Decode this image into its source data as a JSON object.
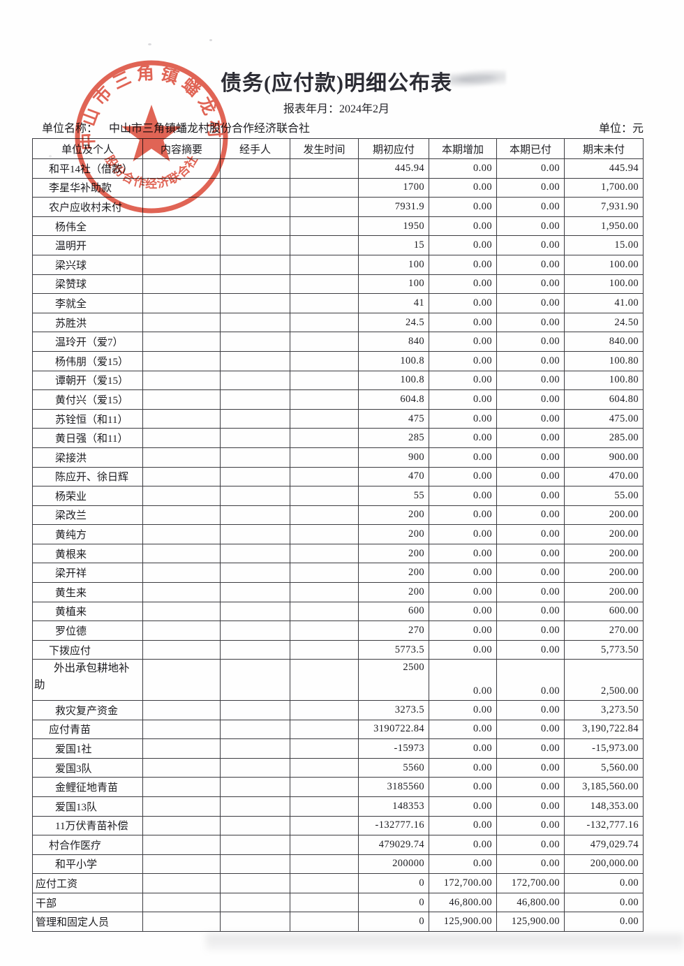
{
  "page": {
    "title": "债务(应付款)明细公布表",
    "report_period_label": "报表年月：2024年2月",
    "unit_name_label": "单位名称：",
    "unit_name": "中山市三角镇蟠龙村股份合作经济联合社",
    "currency_label": "单位：元"
  },
  "seal": {
    "arc_text": "中山市三角镇蟠龙村",
    "bottom_text": "股份合作经济联合社",
    "color": "#dc4634"
  },
  "table": {
    "columns": [
      "单位及个人",
      "内容摘要",
      "经手人",
      "发生时间",
      "期初应付",
      "本期增加",
      "本期已付",
      "期末未付"
    ],
    "rows": [
      {
        "name": "和平14社（借款）",
        "indent": 1,
        "values": [
          "445.94",
          "0.00",
          "0.00",
          "445.94"
        ]
      },
      {
        "name": "李星华补助款",
        "indent": 1,
        "values": [
          "1700",
          "0.00",
          "0.00",
          "1,700.00"
        ]
      },
      {
        "name": "农户应收村未付",
        "indent": 1,
        "values": [
          "7931.9",
          "0.00",
          "0.00",
          "7,931.90"
        ]
      },
      {
        "name": "杨伟全",
        "indent": 2,
        "values": [
          "1950",
          "0.00",
          "0.00",
          "1,950.00"
        ]
      },
      {
        "name": "温明开",
        "indent": 2,
        "values": [
          "15",
          "0.00",
          "0.00",
          "15.00"
        ]
      },
      {
        "name": "梁兴球",
        "indent": 2,
        "values": [
          "100",
          "0.00",
          "0.00",
          "100.00"
        ]
      },
      {
        "name": "梁赞球",
        "indent": 2,
        "values": [
          "100",
          "0.00",
          "0.00",
          "100.00"
        ]
      },
      {
        "name": "李就全",
        "indent": 2,
        "values": [
          "41",
          "0.00",
          "0.00",
          "41.00"
        ]
      },
      {
        "name": "苏胜洪",
        "indent": 2,
        "values": [
          "24.5",
          "0.00",
          "0.00",
          "24.50"
        ]
      },
      {
        "name": "温玲开（爱7）",
        "indent": 2,
        "values": [
          "840",
          "0.00",
          "0.00",
          "840.00"
        ]
      },
      {
        "name": "杨伟朋（爱15）",
        "indent": 2,
        "values": [
          "100.8",
          "0.00",
          "0.00",
          "100.80"
        ]
      },
      {
        "name": "谭朝开（爱15）",
        "indent": 2,
        "values": [
          "100.8",
          "0.00",
          "0.00",
          "100.80"
        ]
      },
      {
        "name": "黄付兴（爱15）",
        "indent": 2,
        "values": [
          "604.8",
          "0.00",
          "0.00",
          "604.80"
        ]
      },
      {
        "name": "苏铨恒（和11）",
        "indent": 2,
        "values": [
          "475",
          "0.00",
          "0.00",
          "475.00"
        ]
      },
      {
        "name": "黄日强（和11）",
        "indent": 2,
        "values": [
          "285",
          "0.00",
          "0.00",
          "285.00"
        ]
      },
      {
        "name": "梁接洪",
        "indent": 2,
        "values": [
          "900",
          "0.00",
          "0.00",
          "900.00"
        ]
      },
      {
        "name": "陈应开、徐日辉",
        "indent": 2,
        "values": [
          "470",
          "0.00",
          "0.00",
          "470.00"
        ]
      },
      {
        "name": "杨荣业",
        "indent": 2,
        "values": [
          "55",
          "0.00",
          "0.00",
          "55.00"
        ]
      },
      {
        "name": "梁改兰",
        "indent": 2,
        "values": [
          "200",
          "0.00",
          "0.00",
          "200.00"
        ]
      },
      {
        "name": "黄纯方",
        "indent": 2,
        "values": [
          "200",
          "0.00",
          "0.00",
          "200.00"
        ]
      },
      {
        "name": "黄根来",
        "indent": 2,
        "values": [
          "200",
          "0.00",
          "0.00",
          "200.00"
        ]
      },
      {
        "name": "梁开祥",
        "indent": 2,
        "values": [
          "200",
          "0.00",
          "0.00",
          "200.00"
        ]
      },
      {
        "name": "黄生来",
        "indent": 2,
        "values": [
          "200",
          "0.00",
          "0.00",
          "200.00"
        ]
      },
      {
        "name": "黄植来",
        "indent": 2,
        "values": [
          "600",
          "0.00",
          "0.00",
          "600.00"
        ]
      },
      {
        "name": "罗位德",
        "indent": 2,
        "values": [
          "270",
          "0.00",
          "0.00",
          "270.00"
        ]
      },
      {
        "name": "下拨应付",
        "indent": 1,
        "values": [
          "5773.5",
          "0.00",
          "0.00",
          "5,773.50"
        ]
      },
      {
        "name": "外出承包耕地补助",
        "indent": 2,
        "tall": true,
        "values": [
          "2500",
          "0.00",
          "0.00",
          "2,500.00"
        ]
      },
      {
        "name": "救灾复产资金",
        "indent": 2,
        "values": [
          "3273.5",
          "0.00",
          "0.00",
          "3,273.50"
        ]
      },
      {
        "name": "应付青苗",
        "indent": 1,
        "values": [
          "3190722.84",
          "0.00",
          "0.00",
          "3,190,722.84"
        ]
      },
      {
        "name": "爱国1社",
        "indent": 2,
        "values": [
          "-15973",
          "0.00",
          "0.00",
          "-15,973.00"
        ]
      },
      {
        "name": "爱国3队",
        "indent": 2,
        "values": [
          "5560",
          "0.00",
          "0.00",
          "5,560.00"
        ]
      },
      {
        "name": "金鲤征地青苗",
        "indent": 2,
        "values": [
          "3185560",
          "0.00",
          "0.00",
          "3,185,560.00"
        ]
      },
      {
        "name": "爱国13队",
        "indent": 2,
        "values": [
          "148353",
          "0.00",
          "0.00",
          "148,353.00"
        ]
      },
      {
        "name": "11万伏青苗补偿",
        "indent": 2,
        "values": [
          "-132777.16",
          "0.00",
          "0.00",
          "-132,777.16"
        ]
      },
      {
        "name": "村合作医疗",
        "indent": 1,
        "values": [
          "479029.74",
          "0.00",
          "0.00",
          "479,029.74"
        ]
      },
      {
        "name": "和平小学",
        "indent": 2,
        "values": [
          "200000",
          "0.00",
          "0.00",
          "200,000.00"
        ]
      },
      {
        "name": "应付工资",
        "indent": 0,
        "values": [
          "0",
          "172,700.00",
          "172,700.00",
          "0.00"
        ]
      },
      {
        "name": "干部",
        "indent": 0,
        "values": [
          "0",
          "46,800.00",
          "46,800.00",
          "0.00"
        ]
      },
      {
        "name": "管理和固定人员",
        "indent": 0,
        "values": [
          "0",
          "125,900.00",
          "125,900.00",
          "0.00"
        ]
      }
    ]
  }
}
